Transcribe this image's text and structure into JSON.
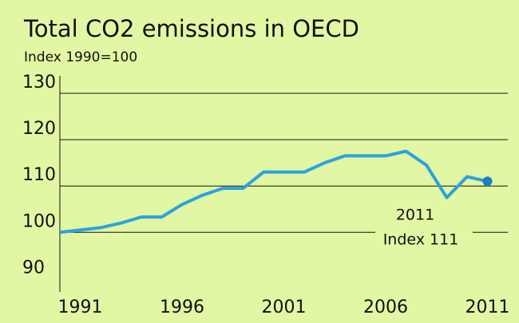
{
  "chart_data": {
    "type": "line",
    "title": "Total CO2 emissions in OECD",
    "subtitle": "Index 1990=100",
    "x": [
      1990,
      1991,
      1992,
      1993,
      1994,
      1995,
      1996,
      1997,
      1998,
      1999,
      2000,
      2001,
      2002,
      2003,
      2004,
      2005,
      2006,
      2007,
      2008,
      2009,
      2010,
      2011
    ],
    "series": [
      {
        "color": "#2aa3df",
        "values": [
          100,
          100.5,
          101,
          102,
          103.3,
          103.3,
          106,
          108,
          109.5,
          109.5,
          113,
          113,
          113,
          115,
          116.5,
          116.5,
          116.5,
          117.5,
          114.5,
          107.5,
          112,
          111
        ]
      }
    ],
    "xlim": [
      1990,
      2012
    ],
    "xticks": [
      1991,
      1996,
      2001,
      2006,
      2011
    ],
    "ylim": [
      88,
      130
    ],
    "yticks": [
      90,
      100,
      110,
      120,
      130
    ],
    "grid": true,
    "annotation": [
      "2011",
      "Index 111"
    ]
  }
}
